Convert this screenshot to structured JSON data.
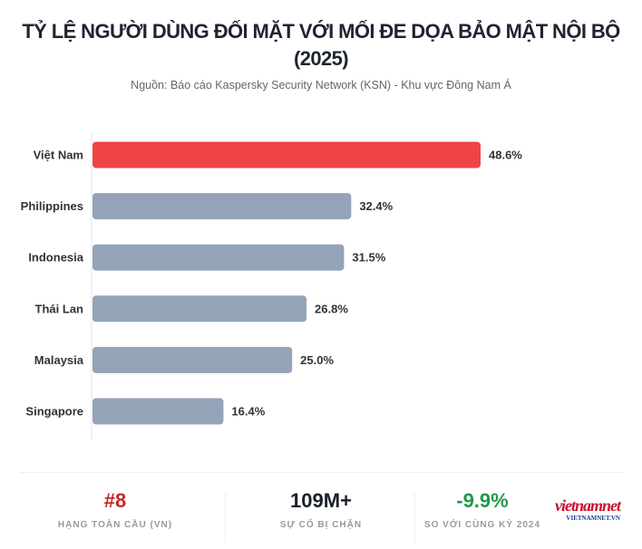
{
  "chart_data": {
    "type": "bar",
    "orientation": "horizontal",
    "title": "TỶ LỆ NGƯỜI DÙNG ĐỐI MẶT VỚI MỐI ĐE DỌA BẢO MẬT NỘI BỘ",
    "title_line2": "(2025)",
    "subtitle": "Nguồn: Báo cáo Kaspersky Security Network (KSN) - Khu vực Đông Nam Á",
    "categories": [
      "Việt Nam",
      "Philippines",
      "Indonesia",
      "Thái Lan",
      "Malaysia",
      "Singapore"
    ],
    "values": [
      48.6,
      32.4,
      31.5,
      26.8,
      25.0,
      16.4
    ],
    "data_labels": [
      "48.6%",
      "32.4%",
      "31.5%",
      "26.8%",
      "25.0%",
      "16.4%"
    ],
    "colors": [
      "#ef4444",
      "#94a3b8",
      "#94a3b8",
      "#94a3b8",
      "#94a3b8",
      "#94a3b8"
    ],
    "xlim": [
      0,
      48.6
    ],
    "grid": false
  },
  "stats": [
    {
      "value": "#8",
      "label": "HẠNG TOÀN CẦU (VN)",
      "color": "#c0282b"
    },
    {
      "value": "109M+",
      "label": "SỰ CỐ BỊ CHẶN",
      "color": "#1a1f2b"
    },
    {
      "value": "-9.9%",
      "label": "SO VỚI CÙNG KỲ 2024",
      "color": "#22994a"
    }
  ],
  "watermark": {
    "logo": "vietnamnet",
    "url_text": "VIETNAMNET.VN"
  }
}
